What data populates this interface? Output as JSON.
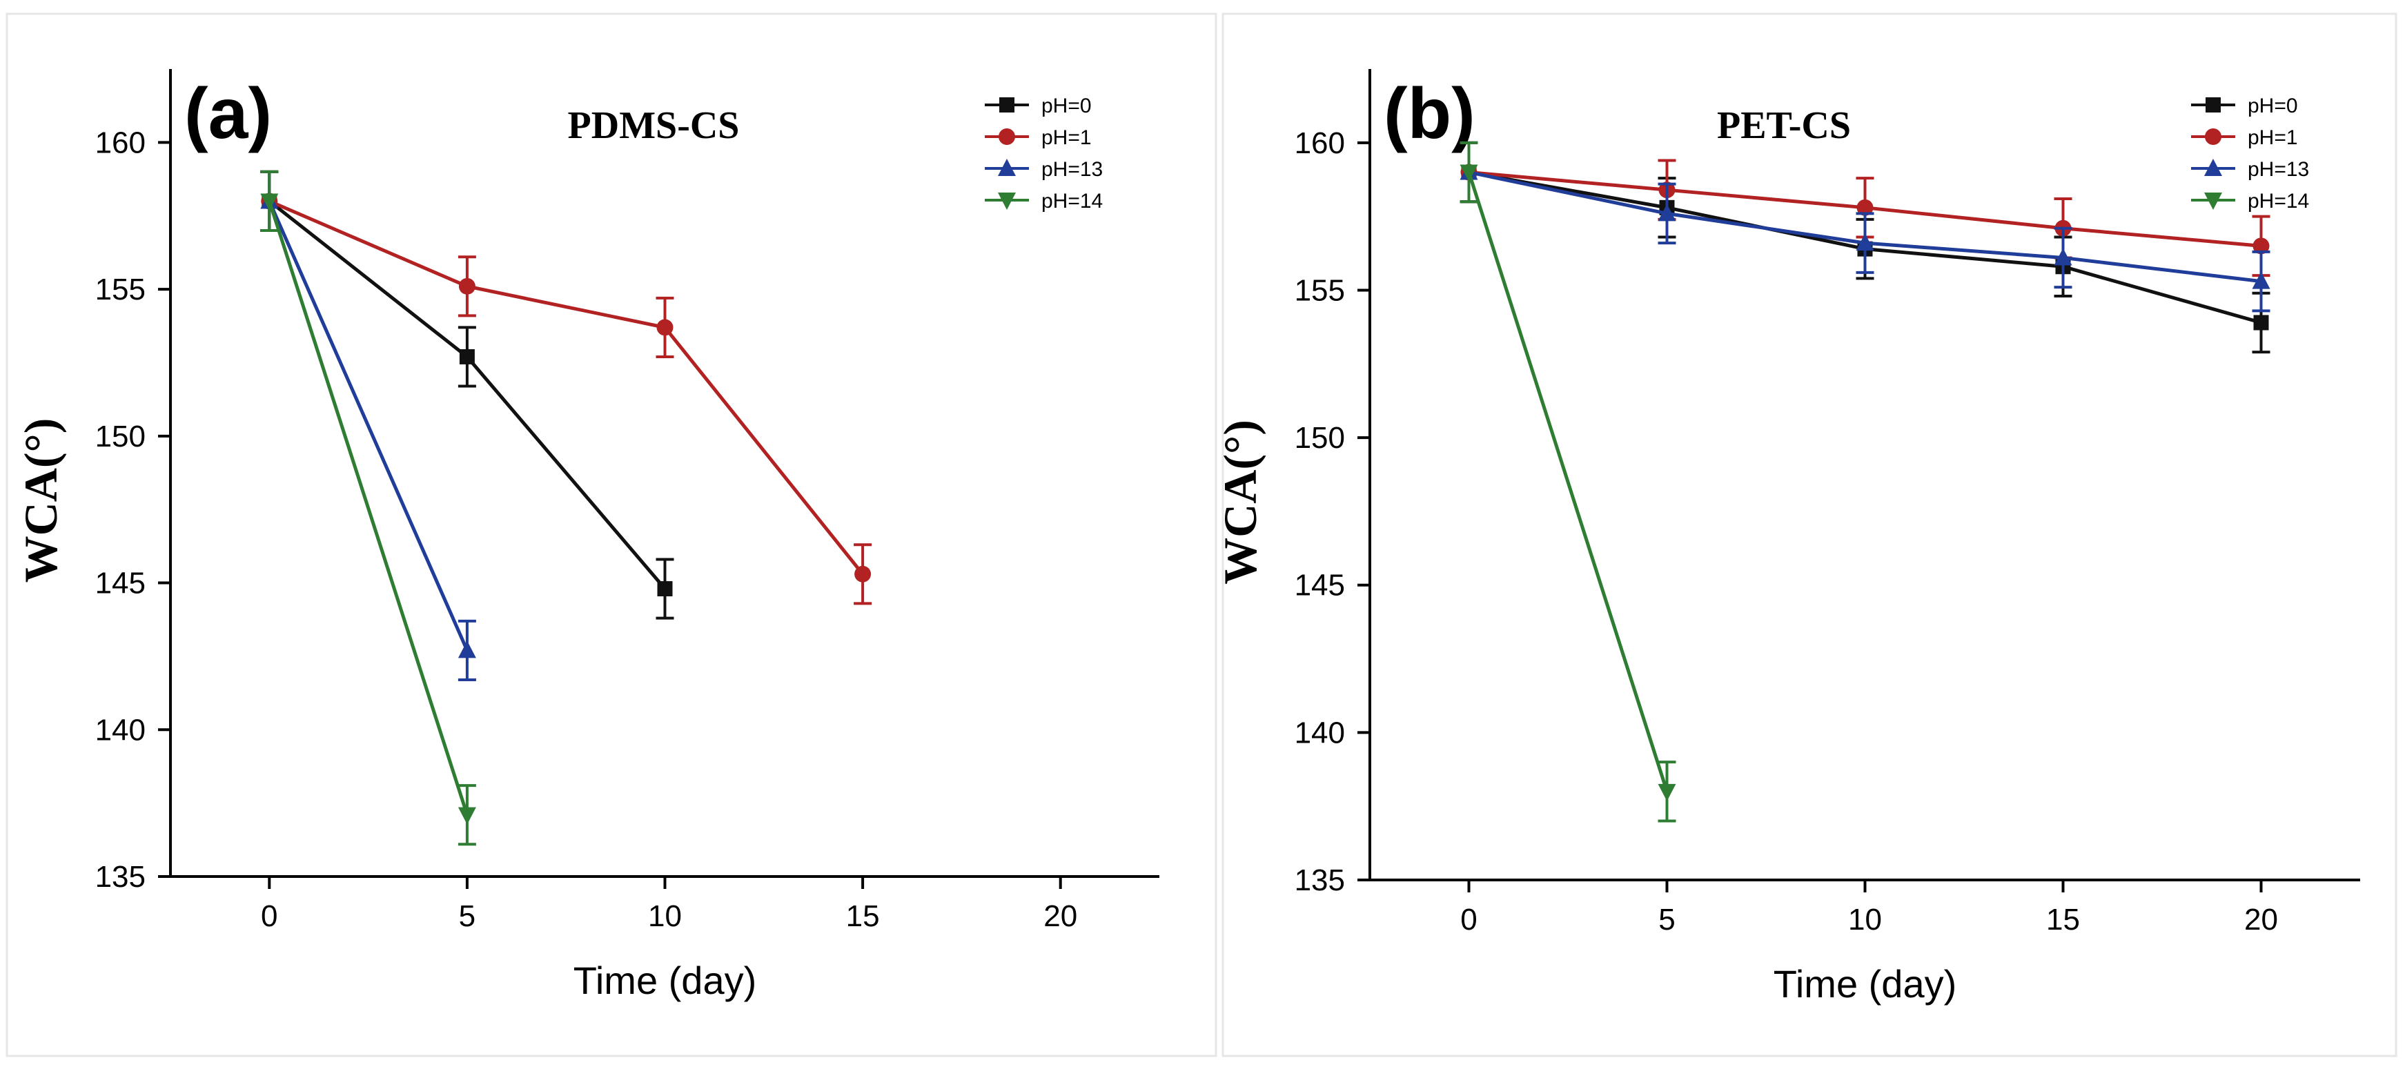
{
  "colors": {
    "pH=0": "#111111",
    "pH=1": "#b22222",
    "pH=13": "#1f3d99",
    "pH=14": "#2e7d32"
  },
  "chart_data": [
    {
      "type": "line",
      "panel_label": "(a)",
      "title": "PDMS-CS",
      "xlabel": "Time (day)",
      "ylabel": "WCA(°)",
      "xlim": [
        -2.5,
        22.5
      ],
      "ylim": [
        135,
        162.5
      ],
      "xticks": [
        "0",
        "5",
        "10",
        "15",
        "20"
      ],
      "yticks": [
        "135",
        "140",
        "145",
        "150",
        "155",
        "160"
      ],
      "legend_position": "top-right",
      "series": [
        {
          "name": "pH=0",
          "marker": "square",
          "points": [
            {
              "x": 0,
              "y": 158,
              "err": 1
            },
            {
              "x": 5,
              "y": 152.7,
              "err": 1
            },
            {
              "x": 10,
              "y": 144.8,
              "err": 1
            }
          ]
        },
        {
          "name": "pH=1",
          "marker": "circle",
          "points": [
            {
              "x": 0,
              "y": 158,
              "err": 1
            },
            {
              "x": 5,
              "y": 155.1,
              "err": 1
            },
            {
              "x": 10,
              "y": 153.7,
              "err": 1
            },
            {
              "x": 15,
              "y": 145.3,
              "err": 1
            }
          ]
        },
        {
          "name": "pH=13",
          "marker": "triangle-up",
          "points": [
            {
              "x": 0,
              "y": 158,
              "err": 1
            },
            {
              "x": 5,
              "y": 142.7,
              "err": 1
            }
          ]
        },
        {
          "name": "pH=14",
          "marker": "triangle-down",
          "points": [
            {
              "x": 0,
              "y": 158,
              "err": 1
            },
            {
              "x": 5,
              "y": 137.1,
              "err": 1
            }
          ]
        }
      ]
    },
    {
      "type": "line",
      "panel_label": "(b)",
      "title": "PET-CS",
      "xlabel": "Time (day)",
      "ylabel": "WCA(°)",
      "xlim": [
        -2.5,
        22.5
      ],
      "ylim": [
        135,
        162.5
      ],
      "xticks": [
        "0",
        "5",
        "10",
        "15",
        "20"
      ],
      "yticks": [
        "135",
        "140",
        "145",
        "150",
        "155",
        "160"
      ],
      "legend_position": "top-right",
      "series": [
        {
          "name": "pH=0",
          "marker": "square",
          "points": [
            {
              "x": 0,
              "y": 159,
              "err": 1
            },
            {
              "x": 5,
              "y": 157.8,
              "err": 1
            },
            {
              "x": 10,
              "y": 156.4,
              "err": 1
            },
            {
              "x": 15,
              "y": 155.8,
              "err": 1
            },
            {
              "x": 20,
              "y": 153.9,
              "err": 1
            }
          ]
        },
        {
          "name": "pH=1",
          "marker": "circle",
          "points": [
            {
              "x": 0,
              "y": 159,
              "err": 1
            },
            {
              "x": 5,
              "y": 158.4,
              "err": 1
            },
            {
              "x": 10,
              "y": 157.8,
              "err": 1
            },
            {
              "x": 15,
              "y": 157.1,
              "err": 1
            },
            {
              "x": 20,
              "y": 156.5,
              "err": 1
            }
          ]
        },
        {
          "name": "pH=13",
          "marker": "triangle-up",
          "points": [
            {
              "x": 0,
              "y": 159,
              "err": 1
            },
            {
              "x": 5,
              "y": 157.6,
              "err": 1
            },
            {
              "x": 10,
              "y": 156.6,
              "err": 1
            },
            {
              "x": 15,
              "y": 156.1,
              "err": 1
            },
            {
              "x": 20,
              "y": 155.3,
              "err": 1
            }
          ]
        },
        {
          "name": "pH=14",
          "marker": "triangle-down",
          "points": [
            {
              "x": 0,
              "y": 159,
              "err": 1
            },
            {
              "x": 5,
              "y": 138,
              "err": 1
            }
          ]
        }
      ]
    }
  ]
}
